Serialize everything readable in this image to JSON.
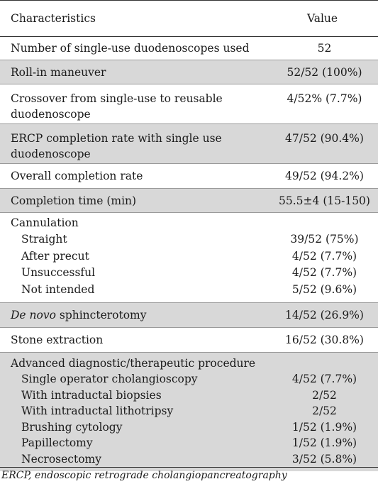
{
  "header": {
    "characteristics": "Characteristics",
    "value": "Value"
  },
  "rows": [
    {
      "label": "Number of single-use duodenoscopes used",
      "value": "52"
    },
    {
      "label": "Roll-in maneuver",
      "value": "52/52 (100%)"
    },
    {
      "label_line1": "Crossover from single-use to reusable",
      "label_line2": "duodenoscope",
      "value": "4/52% (7.7%)"
    },
    {
      "label_line1": "ERCP completion rate with single use",
      "label_line2": "duodenoscope",
      "value": "47/52 (90.4%)"
    },
    {
      "label": "Overall completion rate",
      "value": "49/52 (94.2%)"
    },
    {
      "label": "Completion time (min)",
      "value": "55.5±4 (15-150)"
    },
    {
      "label": "Cannulation",
      "items": [
        {
          "label": "Straight",
          "value": "39/52 (75%)"
        },
        {
          "label": "After precut",
          "value": "4/52 (7.7%)"
        },
        {
          "label": "Unsuccessful",
          "value": "4/52 (7.7%)"
        },
        {
          "label": "Not intended",
          "value": "5/52 (9.6%)"
        }
      ]
    },
    {
      "label_italic": "De novo",
      "label_rest": " sphincterotomy",
      "value": "14/52 (26.9%)"
    },
    {
      "label": "Stone extraction",
      "value": "16/52 (30.8%)"
    },
    {
      "label": "Advanced diagnostic/therapeutic procedure",
      "items": [
        {
          "label": "Single operator cholangioscopy",
          "value": "4/52 (7.7%)"
        },
        {
          "label": "With intraductal biopsies",
          "value": "2/52"
        },
        {
          "label": "With intraductal lithotripsy",
          "value": "2/52"
        },
        {
          "label": "Brushing cytology",
          "value": "1/52 (1.9%)"
        },
        {
          "label": "Papillectomy",
          "value": "1/52 (1.9%)"
        },
        {
          "label": "Necrosectomy",
          "value": "3/52 (5.8%)"
        }
      ]
    }
  ],
  "footnote": "ERCP, endoscopic retrograde cholangiopancreatography",
  "colors": {
    "shade": "#d8d8d8",
    "rule": "#333333"
  }
}
